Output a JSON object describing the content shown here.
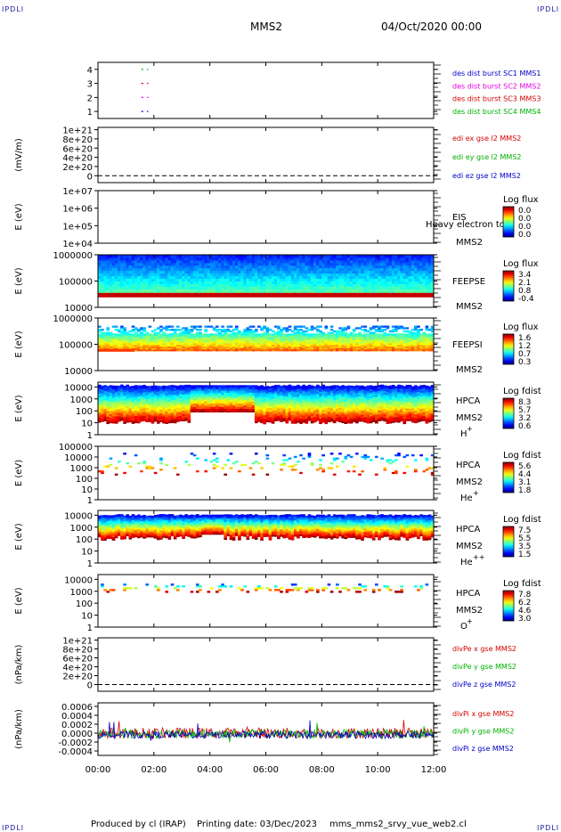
{
  "page": {
    "corner_label": "IPDLI",
    "spacecraft": "MMS2",
    "date_time": "04/Oct/2020 00:00",
    "footer": {
      "producer": "Produced by cl (IRAP)",
      "printing_date": "Printing date: 03/Dec/2023",
      "filename": "mms_mms2_srvy_vue_web2.cl"
    }
  },
  "colors": {
    "red": "#d40000",
    "magenta": "#e000e0",
    "green": "#00b000",
    "blue": "#0000c8",
    "black": "#000000"
  },
  "chart_data": [
    {
      "type": "line",
      "id": "burst",
      "ylabel": "",
      "yticks": [
        "1",
        "2",
        "3",
        "4"
      ],
      "yticks_v": [
        1,
        2,
        3,
        4
      ],
      "ylim": [
        0.5,
        4.5
      ],
      "legend": [
        {
          "name": "des dist burst SC1 MMS1",
          "color": "#0000c8"
        },
        {
          "name": "des dist burst SC2 MMS2",
          "color": "#e000e0"
        },
        {
          "name": "des dist burst SC3 MMS3",
          "color": "#d40000"
        },
        {
          "name": "des dist burst SC4 MMS4",
          "color": "#00b000"
        }
      ],
      "series": [
        {
          "name": "des dist burst SC1 MMS1",
          "y": 1,
          "x": [
            [
              1.55,
              1.62
            ],
            [
              1.75,
              1.8
            ]
          ],
          "color": "#0000c8"
        },
        {
          "name": "des dist burst SC2 MMS2",
          "y": 2,
          "x": [
            [
              1.55,
              1.62
            ],
            [
              1.75,
              1.8
            ]
          ],
          "color": "#e000e0"
        },
        {
          "name": "des dist burst SC3 MMS3",
          "y": 3,
          "x": [
            [
              1.55,
              1.62
            ],
            [
              1.75,
              1.8
            ]
          ],
          "color": "#d40000"
        },
        {
          "name": "des dist burst SC4 MMS4",
          "y": 4,
          "x": [
            [
              1.55,
              1.62
            ],
            [
              1.75,
              1.8
            ]
          ],
          "color": "#00b000"
        }
      ]
    },
    {
      "type": "line",
      "id": "edi",
      "ylabel": "(mV/m)",
      "yticks": [
        "0",
        "2e+20",
        "4e+20",
        "6e+20",
        "8e+20",
        "1e+21"
      ],
      "yticks_v": [
        0,
        2e+20,
        4e+20,
        6e+20,
        8e+20,
        1e+21
      ],
      "ylim": [
        -1.5e+20,
        1.05e+21
      ],
      "zero_line": true,
      "legend": [
        {
          "name": "edi ex gse l2 MMS2",
          "color": "#d40000"
        },
        {
          "name": "edi ey gse l2 MMS2",
          "color": "#00b000"
        },
        {
          "name": "edi ez gse l2 MMS2",
          "color": "#0000c8"
        }
      ]
    },
    {
      "type": "heatmap",
      "id": "eis",
      "ylabel": "E (eV)",
      "yticks": [
        "1e+04",
        "1e+05",
        "1e+06",
        "1e+07"
      ],
      "ylog": [
        4,
        7
      ],
      "instrument": "EIS",
      "overlay_text": "Heavy electron to",
      "sc_label": "MMS2",
      "colorbar": {
        "title": "Log flux",
        "ticks": [
          "0.0",
          "0.0",
          "0.0",
          "0.0"
        ]
      }
    },
    {
      "type": "heatmap",
      "id": "feepse",
      "ylabel": "E (eV)",
      "yticks": [
        "10000",
        "100000",
        "1000000"
      ],
      "ylog": [
        4,
        6
      ],
      "instrument": "FEEPSE",
      "sc_label": "MMS2",
      "colorbar": {
        "title": "Log flux",
        "ticks": [
          "3.4",
          "2.1",
          "0.8",
          "-0.4"
        ]
      }
    },
    {
      "type": "heatmap",
      "id": "feepsi",
      "ylabel": "E (eV)",
      "yticks": [
        "10000",
        "100000",
        "1000000"
      ],
      "ylog": [
        4,
        6
      ],
      "instrument": "FEEPSI",
      "sc_label": "MMS2",
      "colorbar": {
        "title": "Log flux",
        "ticks": [
          "1.6",
          "1.2",
          "0.7",
          "0.3"
        ]
      }
    },
    {
      "type": "heatmap",
      "id": "hpca-h",
      "ylabel": "E (eV)",
      "yticks": [
        "1",
        "10",
        "100",
        "1000",
        "10000"
      ],
      "ylog": [
        0,
        4.4
      ],
      "instrument": "HPCA",
      "sc_label": "MMS2",
      "species": "H",
      "species_sup": "+",
      "colorbar": {
        "title": "Log fdist",
        "ticks": [
          "8.3",
          "5.7",
          "3.2",
          "0.6"
        ]
      }
    },
    {
      "type": "heatmap",
      "id": "hpca-he",
      "ylabel": "E (eV)",
      "yticks": [
        "1",
        "10",
        "100",
        "1000",
        "10000",
        "100000"
      ],
      "ylog": [
        0,
        5
      ],
      "instrument": "HPCA",
      "sc_label": "MMS2",
      "species": "He",
      "species_sup": "+",
      "colorbar": {
        "title": "Log fdist",
        "ticks": [
          "5.6",
          "4.4",
          "3.1",
          "1.8"
        ]
      }
    },
    {
      "type": "heatmap",
      "id": "hpca-hepp",
      "ylabel": "E (eV)",
      "yticks": [
        "1",
        "10",
        "100",
        "1000",
        "10000"
      ],
      "ylog": [
        0,
        4.4
      ],
      "instrument": "HPCA",
      "sc_label": "MMS2",
      "species": "He",
      "species_sup": "++",
      "colorbar": {
        "title": "Log fdist",
        "ticks": [
          "7.5",
          "5.5",
          "3.5",
          "1.5"
        ]
      }
    },
    {
      "type": "heatmap",
      "id": "hpca-o",
      "ylabel": "E (eV)",
      "yticks": [
        "1",
        "10",
        "100",
        "1000",
        "10000"
      ],
      "ylog": [
        0,
        4.4
      ],
      "instrument": "HPCA",
      "sc_label": "MMS2",
      "species": "O",
      "species_sup": "+",
      "colorbar": {
        "title": "Log fdist",
        "ticks": [
          "7.8",
          "6.2",
          "4.6",
          "3.0"
        ]
      }
    },
    {
      "type": "line",
      "id": "divpe",
      "ylabel": "(nPa/km)",
      "yticks": [
        "0",
        "2e+20",
        "4e+20",
        "6e+20",
        "8e+20",
        "1e+21"
      ],
      "yticks_v": [
        0,
        2e+20,
        4e+20,
        6e+20,
        8e+20,
        1e+21
      ],
      "ylim": [
        -1.5e+20,
        1.05e+21
      ],
      "zero_line": true,
      "legend": [
        {
          "name": "divPe x gse MMS2",
          "color": "#d40000"
        },
        {
          "name": "divPe y gse MMS2",
          "color": "#00b000"
        },
        {
          "name": "divPe z gse MMS2",
          "color": "#0000c8"
        }
      ]
    },
    {
      "type": "line",
      "id": "divpi",
      "ylabel": "(nPa/km)",
      "yticks": [
        "-0.0004",
        "-0.0002",
        "0.0000",
        "0.0002",
        "0.0004",
        "0.0006"
      ],
      "yticks_v": [
        -0.0004,
        -0.0002,
        0,
        0.0002,
        0.0004,
        0.0006
      ],
      "ylim": [
        -0.0005,
        0.00068
      ],
      "legend": [
        {
          "name": "divPi x gse MMS2",
          "color": "#d40000"
        },
        {
          "name": "divPi y gse MMS2",
          "color": "#00b000"
        },
        {
          "name": "divPi z gse MMS2",
          "color": "#0000c8"
        }
      ]
    }
  ],
  "x_axis": {
    "ticks": [
      "00:00",
      "02:00",
      "04:00",
      "06:00",
      "08:00",
      "10:00",
      "12:00"
    ],
    "xlim_hours": [
      0,
      12
    ]
  }
}
